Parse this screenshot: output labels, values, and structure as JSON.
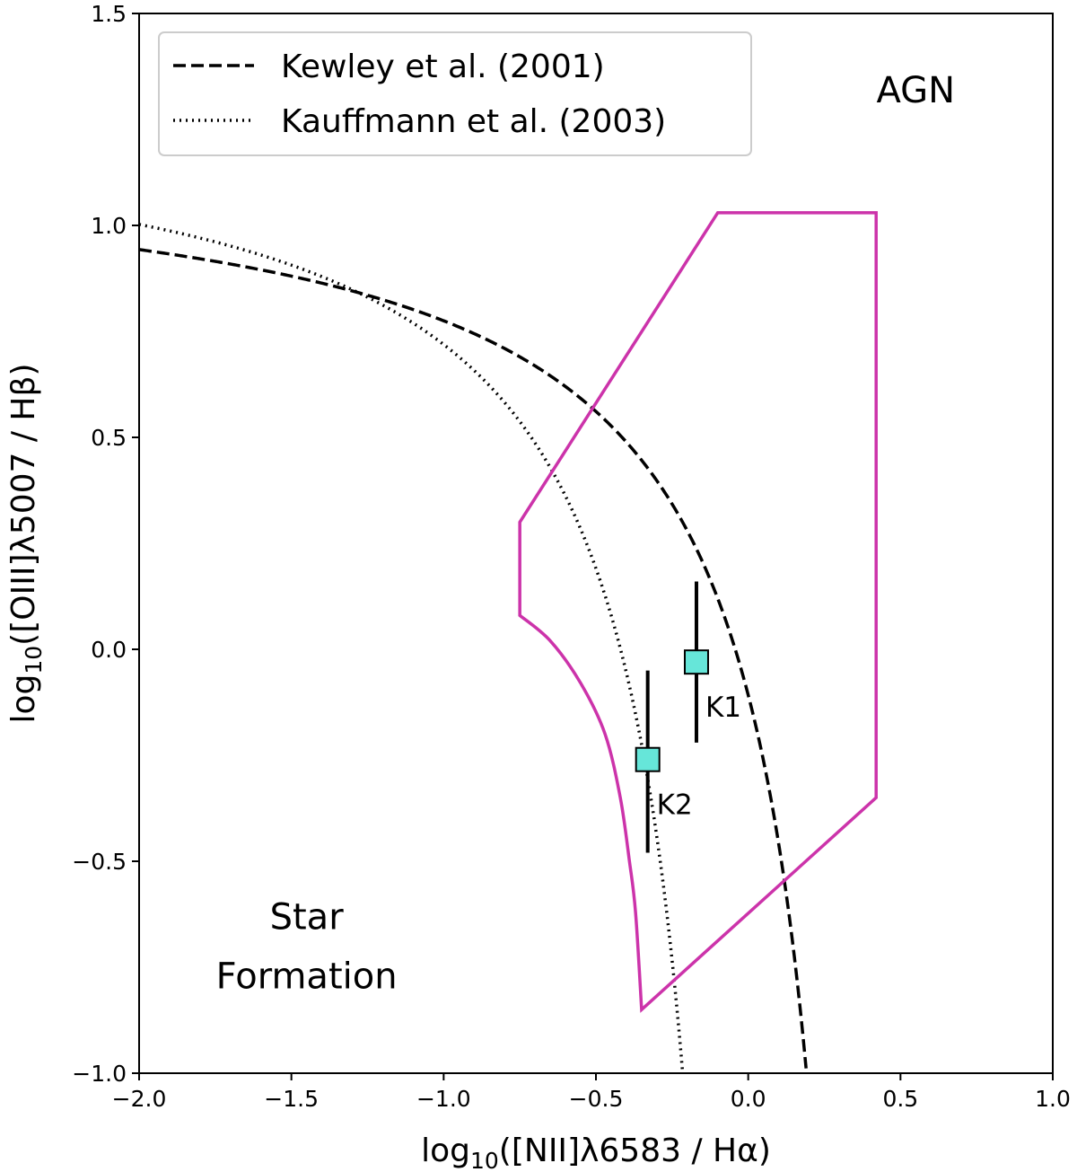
{
  "chart_data": {
    "type": "scatter",
    "title": "",
    "xlabel": "log10([NII]λ6583 / Hα)",
    "ylabel": "log10([OIII]λ5007 / Hβ)",
    "xlim": [
      -2.0,
      1.0
    ],
    "ylim": [
      -1.0,
      1.5
    ],
    "grid": false,
    "legend_placement": "top-left",
    "xticks": [
      -2.0,
      -1.5,
      -1.0,
      -0.5,
      0.0,
      0.5,
      1.0
    ],
    "xtick_labels": [
      "−2.0",
      "−1.5",
      "−1.0",
      "−0.5",
      "0.0",
      "0.5",
      "1.0"
    ],
    "yticks": [
      -1.0,
      -0.5,
      0.0,
      0.5,
      1.0,
      1.5
    ],
    "ytick_labels": [
      "−1.0",
      "−0.5",
      "0.0",
      "0.5",
      "1.0",
      "1.5"
    ],
    "legend": [
      {
        "label": "Kewley et al. (2001)",
        "style": "dashed",
        "color": "#000000"
      },
      {
        "label": "Kauffmann et al. (2003)",
        "style": "dotted",
        "color": "#000000"
      }
    ],
    "curves": [
      {
        "id": "kewley",
        "style": "dashed",
        "color": "#000000",
        "formula": "0.61/(x-0.47)+1.19",
        "x_range": [
          -2.0,
          0.19
        ]
      },
      {
        "id": "kauffmann",
        "style": "dotted",
        "color": "#000000",
        "formula": "0.61/(x-0.05)+1.3",
        "x_range": [
          -2.0,
          -0.212
        ]
      }
    ],
    "region": {
      "color": "#cc33aa",
      "points": [
        [
          -0.35,
          -0.85
        ],
        [
          0.42,
          -0.35
        ],
        [
          0.42,
          1.03
        ],
        [
          -0.1,
          1.03
        ],
        [
          -0.75,
          0.3
        ],
        [
          -0.75,
          0.08
        ],
        [
          -0.65,
          0.02
        ],
        [
          -0.55,
          -0.08
        ],
        [
          -0.47,
          -0.2
        ],
        [
          -0.42,
          -0.35
        ],
        [
          -0.39,
          -0.5
        ],
        [
          -0.37,
          -0.62
        ],
        [
          -0.35,
          -0.85
        ]
      ]
    },
    "points": [
      {
        "label": "K1",
        "x": -0.17,
        "y": -0.03,
        "yerr_low": -0.22,
        "yerr_high": 0.16,
        "color": "#66e6d9"
      },
      {
        "label": "K2",
        "x": -0.33,
        "y": -0.26,
        "yerr_low": -0.48,
        "yerr_high": -0.05,
        "color": "#66e6d9"
      }
    ],
    "annotations": [
      {
        "text": "AGN",
        "x": 0.55,
        "y": 1.29
      },
      {
        "text": "Star",
        "x": -1.45,
        "y": -0.66
      },
      {
        "text": "Formation",
        "x": -1.45,
        "y": -0.8
      }
    ]
  }
}
